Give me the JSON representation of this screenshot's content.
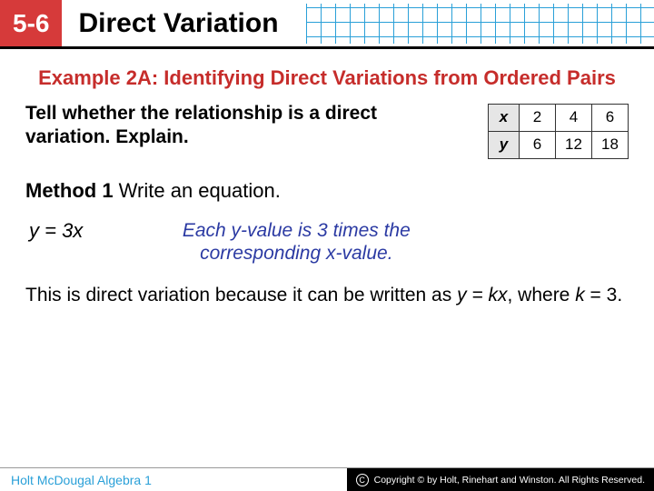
{
  "header": {
    "chapter": "5-6",
    "title": "Direct Variation"
  },
  "example_title": "Example 2A: Identifying Direct Variations from Ordered Pairs",
  "prompt": "Tell whether the relationship is a direct variation. Explain.",
  "table": {
    "x_label": "x",
    "y_label": "y",
    "x": [
      "2",
      "4",
      "6"
    ],
    "y": [
      "6",
      "12",
      "18"
    ],
    "header_bg": "#e6e6e6"
  },
  "method": {
    "label": "Method 1",
    "text": " Write an equation."
  },
  "equation": "y = 3x",
  "explanation": "Each y-value is 3 times the corresponding x-value.",
  "conclusion_a": "This is direct variation because it can be written as ",
  "conclusion_b": "y = kx",
  "conclusion_c": ", where ",
  "conclusion_d": "k",
  "conclusion_e": " = 3.",
  "footer": {
    "left": "Holt McDougal Algebra 1",
    "copyright": "Copyright © by Holt, Rinehart and Winston. All Rights Reserved."
  },
  "colors": {
    "accent_red": "#c62d2b",
    "header_red": "#d63a3a",
    "blue_text": "#2b3aa3",
    "grid_blue": "#2aa0d8"
  }
}
